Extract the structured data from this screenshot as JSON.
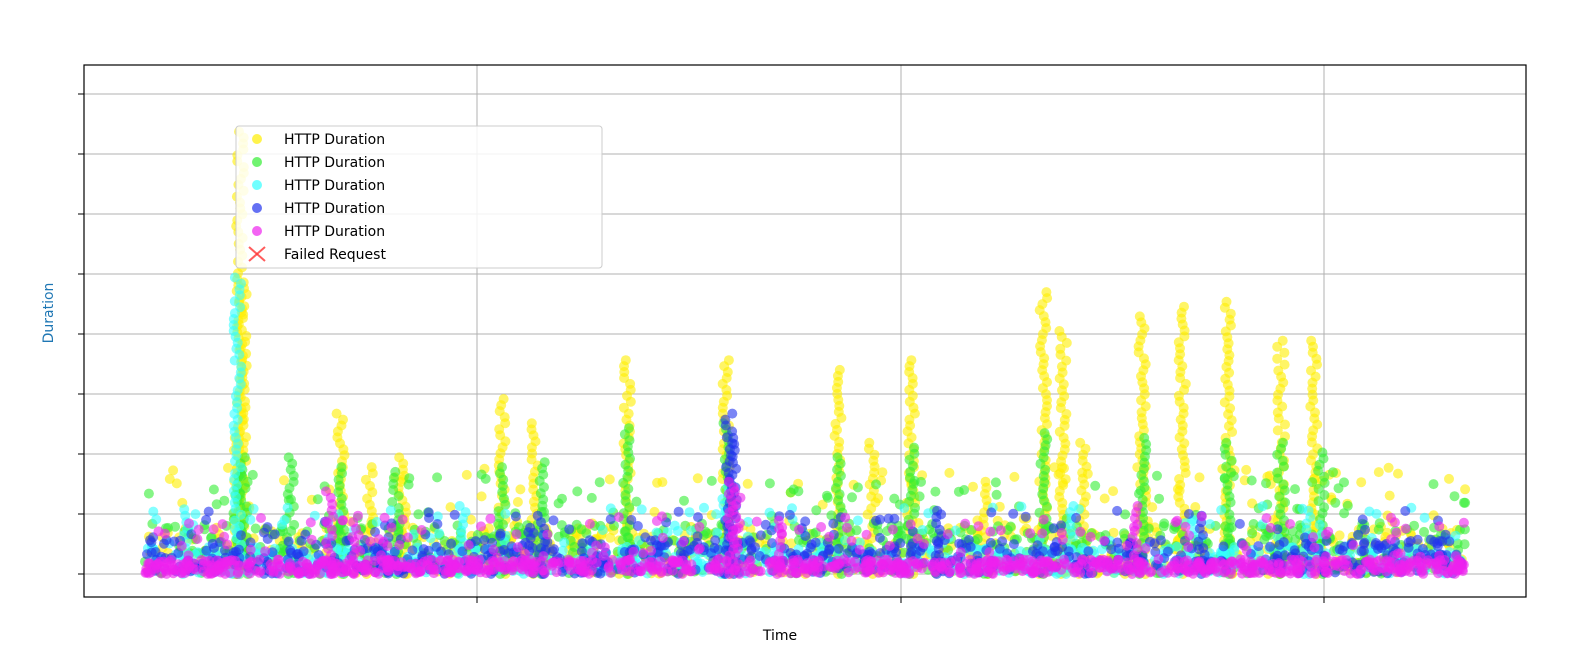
{
  "chart_data": {
    "type": "scatter",
    "title": "",
    "xlabel": "Time",
    "ylabel": "Duration",
    "ylabel_color": "#1f77b4",
    "grid": true,
    "legend_position": "upper-left",
    "x_tick_count": 3,
    "y_tick_count": 9,
    "xlim": [
      0,
      100
    ],
    "ylim": [
      0,
      100
    ],
    "series": [
      {
        "name": "HTTP Duration",
        "color": "#ffee00",
        "marker": "circle",
        "peaks": [
          [
            7.0,
            28
          ],
          [
            7.2,
            91
          ],
          [
            7.4,
            60
          ],
          [
            14.8,
            33
          ],
          [
            17.0,
            22
          ],
          [
            19.5,
            24
          ],
          [
            27.0,
            36
          ],
          [
            29.5,
            31
          ],
          [
            36.5,
            44
          ],
          [
            44.0,
            44
          ],
          [
            52.5,
            42
          ],
          [
            55.0,
            27
          ],
          [
            58.0,
            44
          ],
          [
            63.5,
            19
          ],
          [
            68.0,
            58
          ],
          [
            69.5,
            50
          ],
          [
            71.0,
            27
          ],
          [
            75.5,
            53
          ],
          [
            78.5,
            55
          ],
          [
            82.0,
            56
          ],
          [
            86.0,
            48
          ],
          [
            88.5,
            48
          ]
        ]
      },
      {
        "name": "HTTP Duration",
        "color": "#33ee33",
        "marker": "circle",
        "peaks": [
          [
            7.0,
            20
          ],
          [
            7.5,
            24
          ],
          [
            11.0,
            24
          ],
          [
            14.8,
            22
          ],
          [
            19.0,
            21
          ],
          [
            27.0,
            22
          ],
          [
            30.0,
            23
          ],
          [
            36.5,
            30
          ],
          [
            44.0,
            31
          ],
          [
            52.5,
            24
          ],
          [
            58.0,
            26
          ],
          [
            68.0,
            29
          ],
          [
            75.5,
            28
          ],
          [
            82.0,
            27
          ],
          [
            86.0,
            27
          ],
          [
            89.0,
            25
          ]
        ]
      },
      {
        "name": "HTTP Duration",
        "color": "#33ffff",
        "marker": "circle",
        "peaks": [
          [
            7.0,
            61
          ],
          [
            3.0,
            12
          ],
          [
            24.0,
            14
          ],
          [
            44.0,
            18
          ],
          [
            70.0,
            14
          ],
          [
            88.0,
            13
          ]
        ]
      },
      {
        "name": "HTTP Duration",
        "color": "#2233ee",
        "marker": "circle",
        "peaks": [
          [
            44.2,
            33
          ],
          [
            44.5,
            28
          ],
          [
            30.0,
            12
          ],
          [
            60.0,
            13
          ],
          [
            80.0,
            12
          ]
        ]
      },
      {
        "name": "HTTP Duration",
        "color": "#ee22ee",
        "marker": "circle",
        "peaks": [
          [
            44.3,
            19
          ],
          [
            44.8,
            17
          ],
          [
            14.0,
            17
          ],
          [
            16.0,
            12
          ],
          [
            75.0,
            14
          ],
          [
            48.0,
            11
          ]
        ]
      },
      {
        "name": "Failed Request",
        "color": "#ff3333",
        "marker": "x",
        "peaks": []
      }
    ]
  }
}
